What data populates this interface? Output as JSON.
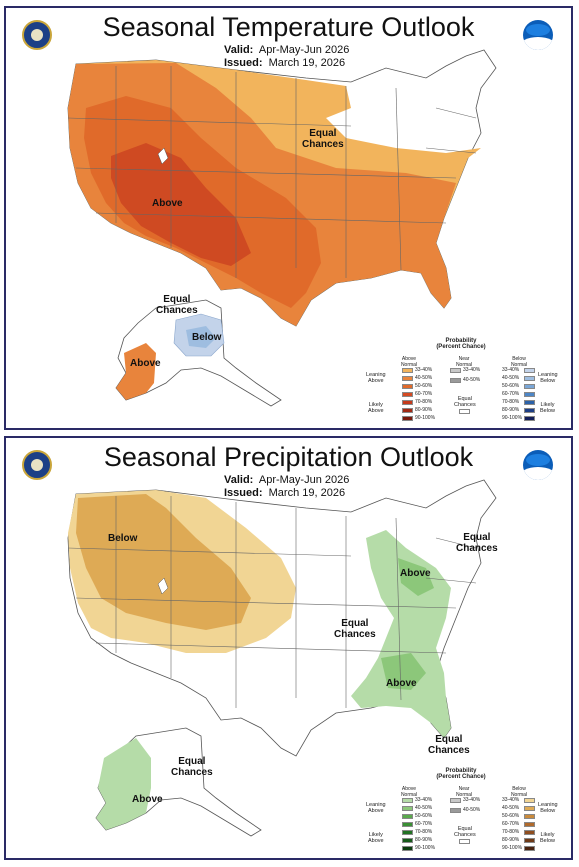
{
  "temperature": {
    "title": "Seasonal Temperature Outlook",
    "valid_label": "Valid:",
    "valid_value": "Apr-May-Jun 2026",
    "issued_label": "Issued:",
    "issued_value": "March 19, 2026",
    "labels": {
      "equal_chances": "Equal\nChances",
      "above": "Above",
      "ak_equal_chances": "Equal\nChances",
      "below": "Below",
      "ak_above": "Above"
    },
    "legend": {
      "title": "Probability\n(Percent Chance)",
      "above_header": "Above\nNormal",
      "near_header": "Near\nNormal",
      "below_header": "Below\nNormal",
      "equal_chances": "Equal\nChances",
      "leaning_above": "Leaning\nAbove",
      "likely_above": "Likely\nAbove",
      "leaning_below": "Leaning\nBelow",
      "likely_below": "Likely\nBelow",
      "ranges": [
        "33-40%",
        "40-50%",
        "50-60%",
        "60-70%",
        "70-80%",
        "80-90%",
        "90-100%"
      ],
      "near_ranges": [
        "33-40%",
        "40-50%"
      ],
      "above_colors": [
        "#f2b45c",
        "#e8843c",
        "#e06a2a",
        "#d44a22",
        "#c43a1c",
        "#a12a14",
        "#7a1a0c"
      ],
      "below_colors": [
        "#c3d3ea",
        "#9ebde0",
        "#7aa6d6",
        "#4d86c6",
        "#2c62a8",
        "#1d3e85",
        "#141f5a"
      ],
      "near_colors": [
        "#c8c8c8",
        "#9a9a9a"
      ]
    }
  },
  "precipitation": {
    "title": "Seasonal Precipitation Outlook",
    "valid_label": "Valid:",
    "valid_value": "Apr-May-Jun 2026",
    "issued_label": "Issued:",
    "issued_value": "March 19, 2026",
    "labels": {
      "below": "Below",
      "ne_equal_chances": "Equal\nChances",
      "above_ne": "Above",
      "equal_chances": "Equal\nChances",
      "above_se": "Above",
      "se_equal_chances": "Equal\nChances",
      "ak_equal_chances": "Equal\nChances",
      "ak_above": "Above"
    },
    "legend": {
      "title": "Probability\n(Percent Chance)",
      "above_header": "Above\nNormal",
      "near_header": "Near\nNormal",
      "below_header": "Below\nNormal",
      "equal_chances": "Equal\nChances",
      "leaning_above": "Leaning\nAbove",
      "likely_above": "Likely\nAbove",
      "leaning_below": "Leaning\nBelow",
      "likely_below": "Likely\nBelow",
      "ranges": [
        "33-40%",
        "40-50%",
        "50-60%",
        "60-70%",
        "70-80%",
        "80-90%",
        "90-100%"
      ],
      "near_ranges": [
        "33-40%",
        "40-50%"
      ],
      "above_colors": [
        "#b5dca8",
        "#8cc77a",
        "#5aa94c",
        "#3a8f34",
        "#227224",
        "#165a1a",
        "#0d3d10"
      ],
      "below_colors": [
        "#f1d594",
        "#deaa55",
        "#c98a3c",
        "#b06a2c",
        "#8f4e20",
        "#6e3a18",
        "#4a2410"
      ],
      "near_colors": [
        "#c8c8c8",
        "#9a9a9a"
      ]
    }
  }
}
